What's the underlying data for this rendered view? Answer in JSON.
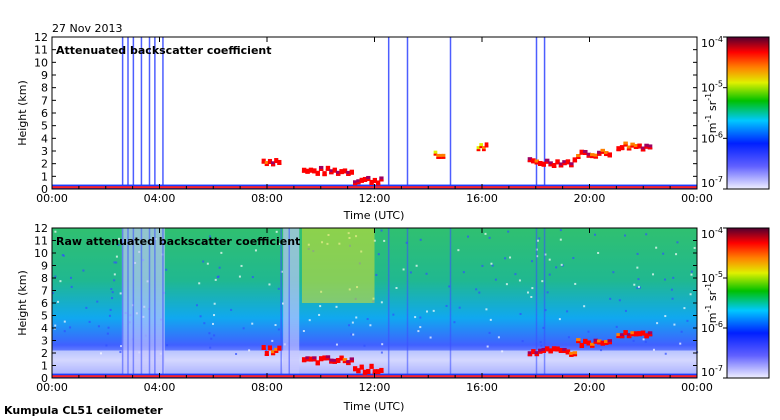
{
  "date_label": "27 Nov 2013",
  "footer_label": "Kumpula CL51 ceilometer",
  "colors": {
    "background": "#ffffff",
    "ground_noise": "#1a3cff",
    "colormap": [
      "#e8e8ff",
      "#4040ff",
      "#00c8ff",
      "#00c000",
      "#ffff00",
      "#ff8000",
      "#ff0000",
      "#a00060",
      "#400030"
    ]
  },
  "chart_data": [
    {
      "type": "heatmap",
      "title": "Attenuated backscatter coefficient",
      "xlabel": "Time (UTC)",
      "ylabel": "Height (km)",
      "xlim": [
        0,
        24
      ],
      "ylim": [
        0,
        12
      ],
      "xticks": [
        0,
        4,
        8,
        12,
        16,
        20,
        24
      ],
      "xtick_labels": [
        "00:00",
        "04:00",
        "08:00",
        "12:00",
        "16:00",
        "20:00",
        "00:00"
      ],
      "yticks": [
        0,
        1,
        2,
        3,
        4,
        5,
        6,
        7,
        8,
        9,
        10,
        11,
        12
      ],
      "ytick_labels": [
        "0",
        "1",
        "2",
        "3",
        "4",
        "5",
        "6",
        "7",
        "8",
        "9",
        "10",
        "11",
        "12"
      ],
      "colorbar": {
        "label_main": "m",
        "exp1": "-1",
        "label_mid": " sr",
        "exp2": "-1",
        "ticks": [
          {
            "base": "10",
            "exp": "-4"
          },
          {
            "base": "10",
            "exp": "-5"
          },
          {
            "base": "10",
            "exp": "-6"
          },
          {
            "base": "10",
            "exp": "-7"
          }
        ]
      },
      "cloud_layers": [
        {
          "t0": 7.8,
          "t1": 8.5,
          "h": 2.4,
          "level": 0.75
        },
        {
          "t0": 9.3,
          "t1": 11.2,
          "h": 1.6,
          "level": 0.85
        },
        {
          "t0": 11.2,
          "t1": 12.3,
          "h": 0.9,
          "level": 0.85
        },
        {
          "t0": 14.2,
          "t1": 14.6,
          "h": 2.8,
          "level": 0.6
        },
        {
          "t0": 15.8,
          "t1": 16.2,
          "h": 3.5,
          "level": 0.6
        },
        {
          "t0": 17.7,
          "t1": 19.5,
          "h": 2.3,
          "level": 0.8
        },
        {
          "t0": 19.5,
          "t1": 20.8,
          "h": 3.0,
          "level": 0.8
        },
        {
          "t0": 21.0,
          "t1": 22.3,
          "h": 3.6,
          "level": 0.8
        }
      ],
      "precip_columns": [
        2.6,
        2.8,
        3.0,
        3.3,
        3.6,
        3.8,
        4.1,
        12.5,
        13.2,
        14.8,
        18.0,
        18.3
      ]
    },
    {
      "type": "heatmap",
      "title": "Raw attenuated backscatter coefficient",
      "xlabel": "Time (UTC)",
      "ylabel": "Height (km)",
      "xlim": [
        0,
        24
      ],
      "ylim": [
        0,
        12
      ],
      "xticks": [
        0,
        4,
        8,
        12,
        16,
        20,
        24
      ],
      "xtick_labels": [
        "00:00",
        "04:00",
        "08:00",
        "12:00",
        "16:00",
        "20:00",
        "00:00"
      ],
      "yticks": [
        0,
        1,
        2,
        3,
        4,
        5,
        6,
        7,
        8,
        9,
        10,
        11,
        12
      ],
      "ytick_labels": [
        "0",
        "1",
        "2",
        "3",
        "4",
        "5",
        "6",
        "7",
        "8",
        "9",
        "10",
        "11",
        "12"
      ],
      "colorbar": {
        "label_main": "m",
        "exp1": "-1",
        "label_mid": " sr",
        "exp2": "-1",
        "ticks": [
          {
            "base": "10",
            "exp": "-4"
          },
          {
            "base": "10",
            "exp": "-5"
          },
          {
            "base": "10",
            "exp": "-6"
          },
          {
            "base": "10",
            "exp": "-7"
          }
        ]
      },
      "cloud_layers": [
        {
          "t0": 7.8,
          "t1": 8.5,
          "h": 2.4,
          "level": 0.75
        },
        {
          "t0": 9.3,
          "t1": 11.2,
          "h": 1.6,
          "level": 0.85
        },
        {
          "t0": 11.2,
          "t1": 12.3,
          "h": 0.9,
          "level": 0.85
        },
        {
          "t0": 17.7,
          "t1": 19.5,
          "h": 2.3,
          "level": 0.8
        },
        {
          "t0": 19.5,
          "t1": 20.8,
          "h": 3.0,
          "level": 0.8
        },
        {
          "t0": 21.0,
          "t1": 22.3,
          "h": 3.6,
          "level": 0.8
        }
      ],
      "precip_columns": [
        2.6,
        2.8,
        3.0,
        3.3,
        3.6,
        3.8,
        4.1,
        8.5,
        8.8,
        12.5,
        13.2,
        14.8,
        18.0,
        18.3
      ]
    }
  ]
}
